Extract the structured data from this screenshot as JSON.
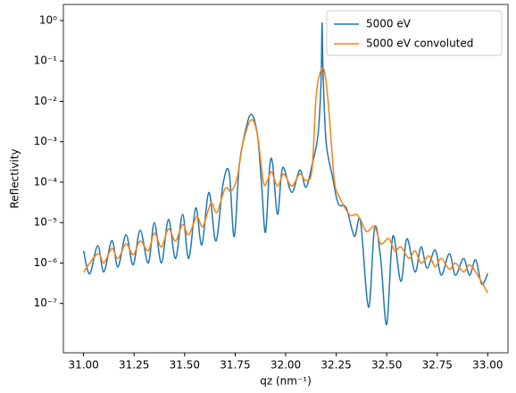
{
  "chart_data": {
    "type": "line",
    "xlabel": "qz (nm⁻¹)",
    "ylabel": "Reflectivity",
    "log_y": true,
    "legend": "upper right",
    "xlim": [
      30.9,
      33.1
    ],
    "ylim": [
      6e-09,
      2.5
    ],
    "xticks": [
      {
        "value": 31,
        "label": "31.00"
      },
      {
        "value": 31.25,
        "label": "31.25"
      },
      {
        "value": 31.5,
        "label": "31.50"
      },
      {
        "value": 31.75,
        "label": "31.75"
      },
      {
        "value": 32,
        "label": "32.00"
      },
      {
        "value": 32.25,
        "label": "32.25"
      },
      {
        "value": 32.5,
        "label": "32.50"
      },
      {
        "value": 32.75,
        "label": "32.75"
      },
      {
        "value": 33,
        "label": "33.00"
      }
    ],
    "yticks": [
      {
        "value": 1e-07,
        "label": "10⁻⁷"
      },
      {
        "value": 1e-06,
        "label": "10⁻⁶"
      },
      {
        "value": 1e-05,
        "label": "10⁻⁵"
      },
      {
        "value": 0.0001,
        "label": "10⁻⁴"
      },
      {
        "value": 0.001,
        "label": "10⁻³"
      },
      {
        "value": 0.01,
        "label": "10⁻²"
      },
      {
        "value": 0.1,
        "label": "10⁻¹"
      },
      {
        "value": 1,
        "label": "10⁰"
      }
    ],
    "series": [
      {
        "name": "5000 eV",
        "color": "#1f77b4",
        "x": [
          31.0,
          31.03,
          31.07,
          31.1,
          31.14,
          31.17,
          31.21,
          31.245,
          31.28,
          31.32,
          31.35,
          31.385,
          31.42,
          31.455,
          31.49,
          31.52,
          31.555,
          31.585,
          31.62,
          31.655,
          31.69,
          31.72,
          31.745,
          31.77,
          31.8,
          31.83,
          31.86,
          31.88,
          31.9,
          31.92,
          31.935,
          31.96,
          31.985,
          32.03,
          32.07,
          32.1,
          32.13,
          32.16,
          32.175,
          32.18,
          32.185,
          32.2,
          32.23,
          32.26,
          32.3,
          32.34,
          32.37,
          32.41,
          32.44,
          32.47,
          32.5,
          32.53,
          32.57,
          32.6,
          32.64,
          32.67,
          32.7,
          32.74,
          32.77,
          32.81,
          32.84,
          32.88,
          32.91,
          32.94,
          32.97,
          33.0
        ],
        "values": [
          2e-06,
          5.4e-07,
          2.7e-06,
          6e-07,
          3.6e-06,
          8e-07,
          5e-06,
          9e-07,
          6.5e-06,
          1e-06,
          1e-05,
          1e-06,
          1.2e-05,
          1.3e-06,
          1.6e-05,
          1.3e-06,
          2.3e-05,
          2.8e-06,
          5.6e-05,
          3.5e-06,
          9e-05,
          0.00018,
          4.5e-06,
          0.00025,
          0.0018,
          0.0048,
          0.0015,
          0.0001,
          5.7e-06,
          0.00022,
          0.0003,
          1.6e-05,
          0.00023,
          5.6e-05,
          0.0002,
          7.5e-05,
          0.00026,
          0.0015,
          0.03,
          0.86,
          0.05,
          0.001,
          0.00015,
          3e-05,
          2.3e-05,
          4.6e-06,
          1.1e-05,
          8e-08,
          7.5e-06,
          1.3e-06,
          3e-08,
          4.6e-06,
          3.5e-07,
          4e-06,
          6e-07,
          2.5e-06,
          7.5e-07,
          2.1e-06,
          5e-07,
          1.7e-06,
          5e-07,
          1.3e-06,
          5e-07,
          1.2e-06,
          3e-07,
          5.5e-07
        ]
      },
      {
        "name": "5000 eV convoluted",
        "color": "#ff7f0e",
        "x": [
          31.0,
          31.07,
          31.1,
          31.14,
          31.17,
          31.21,
          31.245,
          31.28,
          31.32,
          31.35,
          31.385,
          31.42,
          31.455,
          31.49,
          31.52,
          31.56,
          31.59,
          31.63,
          31.66,
          31.7,
          31.73,
          31.76,
          31.79,
          31.83,
          31.86,
          31.89,
          31.91,
          31.93,
          31.96,
          31.99,
          32.03,
          32.07,
          32.1,
          32.13,
          32.15,
          32.17,
          32.19,
          32.21,
          32.24,
          32.26,
          32.29,
          32.32,
          32.35,
          32.37,
          32.4,
          32.44,
          32.47,
          32.51,
          32.54,
          32.57,
          32.61,
          32.64,
          32.67,
          32.71,
          32.74,
          32.77,
          32.81,
          32.84,
          32.88,
          32.91,
          32.95,
          33.0
        ],
        "values": [
          6e-07,
          1.7e-06,
          1e-06,
          2.3e-06,
          1.3e-06,
          3e-06,
          1.6e-06,
          3.5e-06,
          2e-06,
          5.5e-06,
          2.5e-06,
          7e-06,
          3.5e-06,
          9e-06,
          5e-06,
          1.4e-05,
          8e-06,
          3e-05,
          1.8e-05,
          7e-05,
          6e-05,
          0.00013,
          0.001,
          0.0035,
          0.0015,
          0.0001,
          0.00011,
          0.00018,
          8e-05,
          0.00016,
          8e-05,
          0.00016,
          0.00011,
          0.0002,
          0.012,
          0.05,
          0.06,
          0.01,
          0.00012,
          5e-05,
          2.5e-05,
          1.5e-05,
          1.6e-05,
          1.2e-05,
          6e-06,
          8e-06,
          3e-06,
          4e-06,
          2e-06,
          2.5e-06,
          1.3e-06,
          2e-06,
          1e-06,
          1.5e-06,
          8e-07,
          1.3e-06,
          7e-07,
          1e-06,
          6e-07,
          9e-07,
          5e-07,
          1.8e-07
        ]
      }
    ]
  }
}
